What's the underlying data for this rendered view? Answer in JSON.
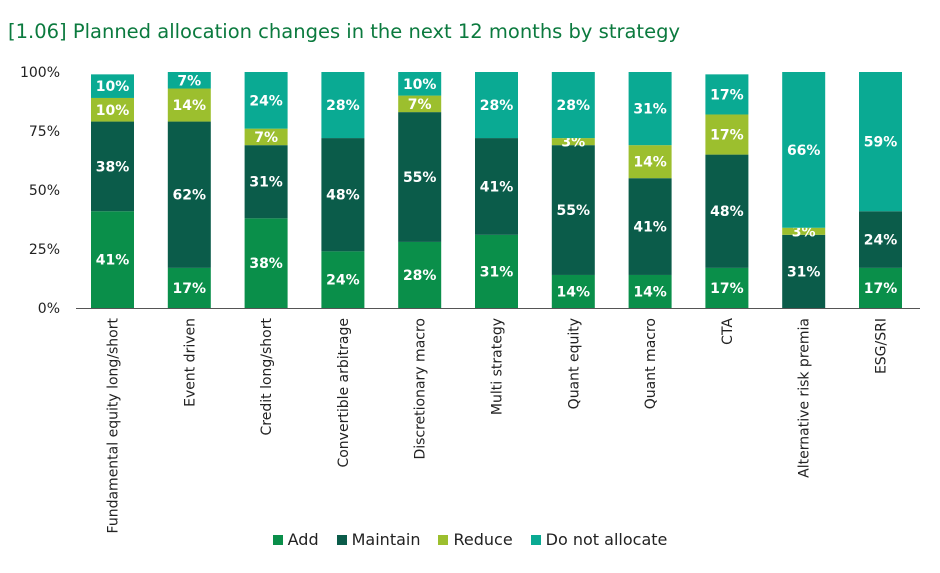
{
  "chart_data": {
    "type": "bar",
    "stacked": true,
    "title": "[1.06] Planned allocation changes in the next 12 months by strategy",
    "categories": [
      "Fundamental equity long/short",
      "Event driven",
      "Credit long/short",
      "Convertible arbitrage",
      "Discretionary macro",
      "Multi strategy",
      "Quant equity",
      "Quant macro",
      "CTA",
      "Alternative risk premia",
      "ESG/SRI"
    ],
    "series": [
      {
        "name": "Add",
        "color": "#0a8f4a",
        "values": [
          41,
          17,
          38,
          24,
          28,
          31,
          14,
          14,
          17,
          0,
          17
        ]
      },
      {
        "name": "Maintain",
        "color": "#0b5c4a",
        "values": [
          38,
          62,
          31,
          48,
          55,
          41,
          55,
          41,
          48,
          31,
          24
        ]
      },
      {
        "name": "Reduce",
        "color": "#9cbf2e",
        "values": [
          10,
          14,
          7,
          0,
          7,
          0,
          3,
          14,
          17,
          3,
          0
        ]
      },
      {
        "name": "Do not allocate",
        "color": "#0aaa93",
        "values": [
          10,
          7,
          24,
          28,
          10,
          28,
          28,
          31,
          17,
          66,
          59
        ]
      }
    ],
    "data_labels": [
      [
        "41%",
        "17%",
        "38%",
        "24%",
        "28%",
        "31%",
        "14%",
        "14%",
        "17%",
        "",
        "17%"
      ],
      [
        "38%",
        "62%",
        "31%",
        "48%",
        "55%",
        "41%",
        "55%",
        "41%",
        "48%",
        "31%",
        "24%"
      ],
      [
        "10%",
        "14%",
        "7%",
        "",
        "7%",
        "",
        "3%",
        "14%",
        "17%",
        "3%",
        ""
      ],
      [
        "10%",
        "7%",
        "24%",
        "28%",
        "10%",
        "28%",
        "28%",
        "31%",
        "17%",
        "66%",
        "59%"
      ]
    ],
    "yticks": [
      "0%",
      "25%",
      "50%",
      "75%",
      "100%"
    ],
    "ylim": [
      0,
      100
    ],
    "xlabel": "",
    "ylabel": "",
    "legend_position": "bottom",
    "grid": false
  }
}
